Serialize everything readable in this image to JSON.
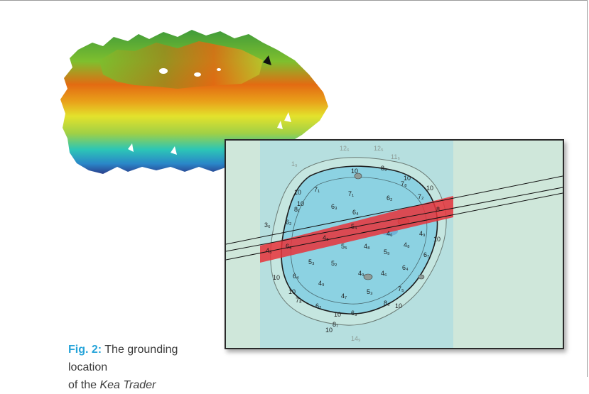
{
  "figure": {
    "caption_label": "Fig. 2:",
    "caption_text": "The grounding location",
    "caption_prefix": "of the",
    "caption_ship": "Kea Trader"
  },
  "chart": {
    "soundings": [
      "12₆",
      "1₉",
      "12₅",
      "11₆",
      "10",
      "8₉",
      "10",
      "7₈",
      "10",
      "10",
      "7₁",
      "7₁",
      "6₂",
      "10",
      "8₁",
      "6₃",
      "6₄",
      "7₂",
      "8",
      "6₂",
      "3₆",
      "5₄",
      "4₈",
      "4₆",
      "4₉",
      "10",
      "6₅",
      "4₈",
      "5₅",
      "4₈",
      "5₉",
      "4₈",
      "5₃",
      "5₂",
      "6₇",
      "4₉",
      "4₉",
      "4₆",
      "6₄",
      "6₄",
      "10",
      "5₃",
      "4₇",
      "7₅",
      "10",
      "7₈",
      "6₂",
      "8₆",
      "10",
      "10",
      "6₃",
      "8₇",
      "10",
      "14₉"
    ],
    "colors": {
      "land": "#cfe7da",
      "shallow_water": "#a6dce6",
      "deep_water": "#8cd2e2",
      "corridor": "#e8323a",
      "route_line": "#111111"
    }
  },
  "relief": {
    "icons": [
      "ship-marker-icon"
    ]
  }
}
